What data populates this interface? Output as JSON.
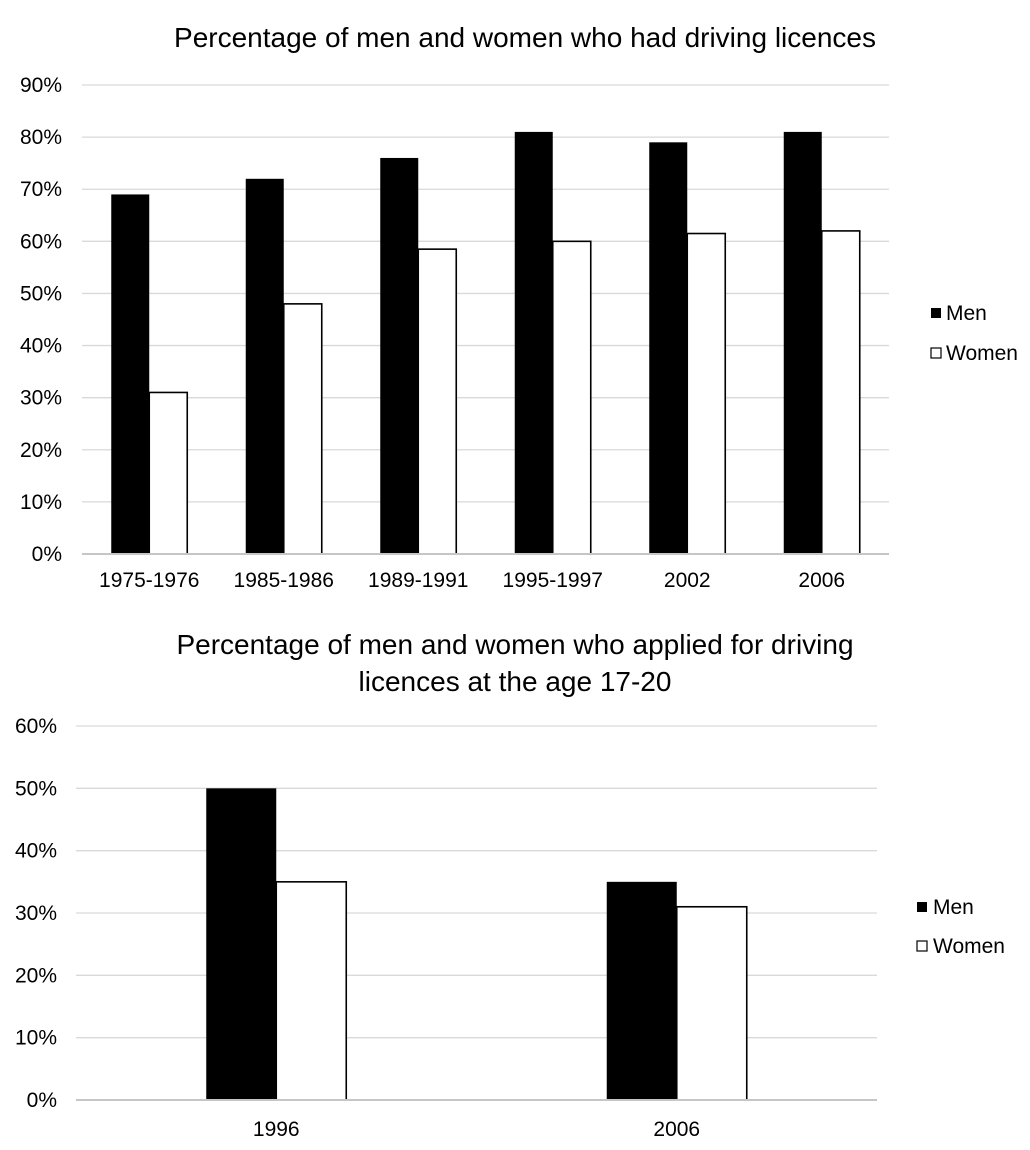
{
  "chart_data": [
    {
      "type": "bar",
      "title": "Percentage of men and women who had driving licences",
      "xlabel": "",
      "ylabel": "",
      "categories": [
        "1975-1976",
        "1985-1986",
        "1989-1991",
        "1995-1997",
        "2002",
        "2006"
      ],
      "series": [
        {
          "name": "Men",
          "values": [
            69,
            72,
            76,
            81,
            79,
            81
          ],
          "color": "#000000"
        },
        {
          "name": "Women",
          "values": [
            31,
            48,
            58.5,
            60,
            61.5,
            62
          ],
          "color": "#ffffff"
        }
      ],
      "ylim": [
        0,
        90
      ],
      "yticks": [
        0,
        10,
        20,
        30,
        40,
        50,
        60,
        70,
        80,
        90
      ],
      "ytick_labels": [
        "0%",
        "10%",
        "20%",
        "30%",
        "40%",
        "50%",
        "60%",
        "70%",
        "80%",
        "90%"
      ],
      "grid": true,
      "legend": "right"
    },
    {
      "type": "bar",
      "title": [
        "Percentage of men and women who applied for driving",
        "licences at the age 17-20"
      ],
      "xlabel": "",
      "ylabel": "",
      "categories": [
        "1996",
        "2006"
      ],
      "series": [
        {
          "name": "Men",
          "values": [
            50,
            35
          ],
          "color": "#000000"
        },
        {
          "name": "Women",
          "values": [
            35,
            31
          ],
          "color": "#ffffff"
        }
      ],
      "ylim": [
        0,
        60
      ],
      "yticks": [
        0,
        10,
        20,
        30,
        40,
        50,
        60
      ],
      "ytick_labels": [
        "0%",
        "10%",
        "20%",
        "30%",
        "40%",
        "50%",
        "60%"
      ],
      "grid": true,
      "legend": "right"
    }
  ]
}
